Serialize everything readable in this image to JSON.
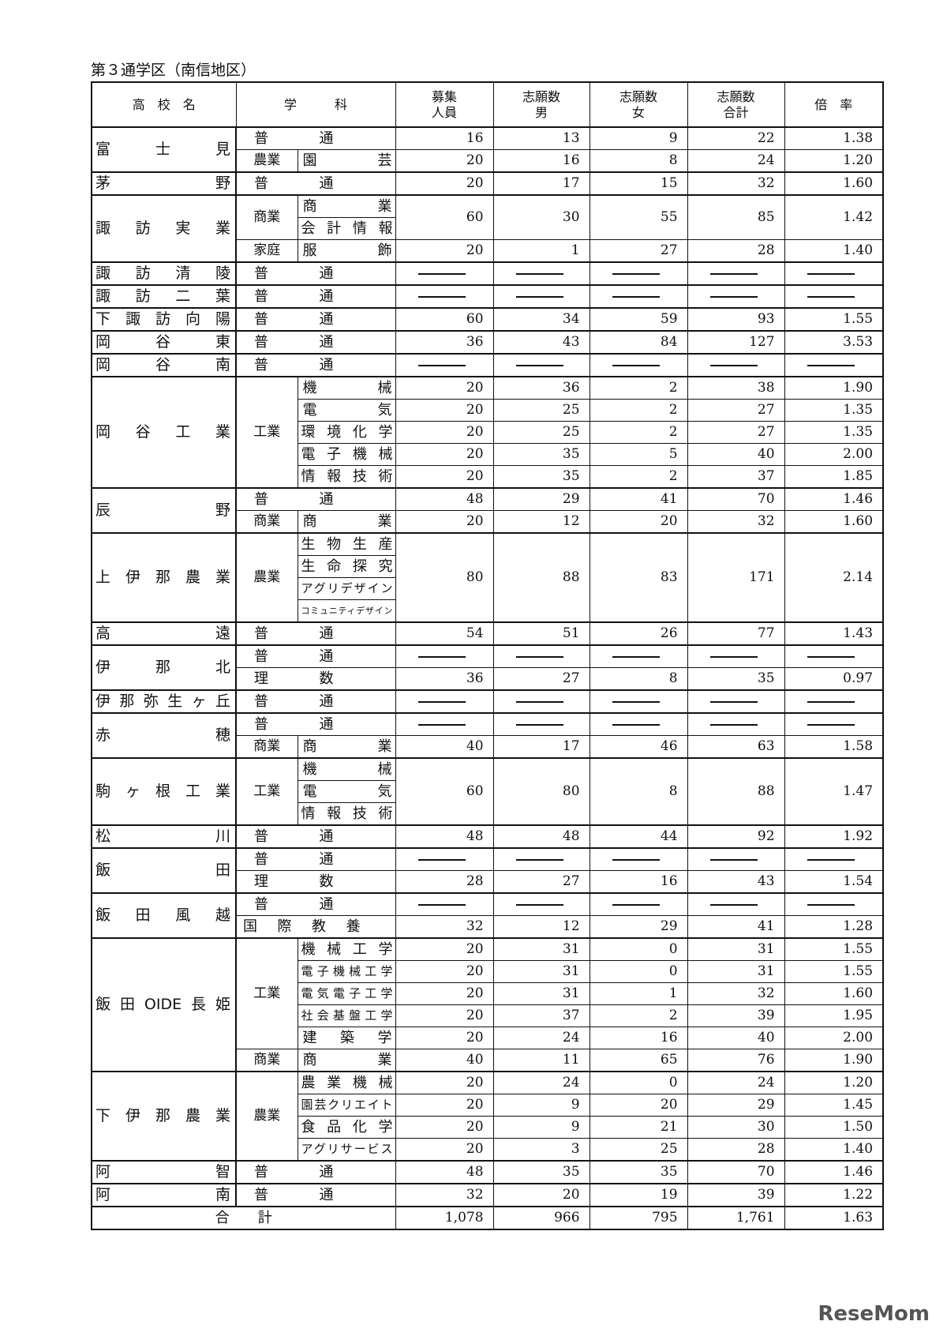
{
  "title": "第３通学区（南信地区）",
  "header": [
    [
      "高　校　名"
    ],
    [
      "学　　　科"
    ],
    [
      "募集",
      "人員"
    ],
    [
      "志願数",
      "男"
    ],
    [
      "志願数",
      "女"
    ],
    [
      "志願数",
      "合計"
    ],
    [
      "倍　率"
    ]
  ],
  "schools": [
    {
      "name": "富士見",
      "depts": [
        {
          "name": "普通",
          "values": [
            "16",
            "13",
            "9",
            "22",
            "1.38"
          ]
        },
        {
          "field": "農業",
          "courses": [
            {
              "names": [
                "園芸"
              ],
              "values": [
                "20",
                "16",
                "8",
                "24",
                "1.20"
              ]
            }
          ]
        }
      ]
    },
    {
      "name": "茅野",
      "depts": [
        {
          "name": "普通",
          "values": [
            "20",
            "17",
            "15",
            "32",
            "1.60"
          ]
        }
      ]
    },
    {
      "name": "諏訪実業",
      "depts": [
        {
          "field": "商業",
          "courses": [
            {
              "names": [
                "商業",
                "会計情報"
              ],
              "values": [
                "60",
                "30",
                "55",
                "85",
                "1.42"
              ]
            }
          ]
        },
        {
          "field": "家庭",
          "courses": [
            {
              "names": [
                "服飾"
              ],
              "values": [
                "20",
                "1",
                "27",
                "28",
                "1.40"
              ]
            }
          ]
        }
      ]
    },
    {
      "name": "諏訪清陵",
      "depts": [
        {
          "name": "普通",
          "values": null
        }
      ]
    },
    {
      "name": "諏訪二葉",
      "depts": [
        {
          "name": "普通",
          "values": null
        }
      ]
    },
    {
      "name": "下諏訪向陽",
      "depts": [
        {
          "name": "普通",
          "values": [
            "60",
            "34",
            "59",
            "93",
            "1.55"
          ]
        }
      ]
    },
    {
      "name": "岡谷東",
      "depts": [
        {
          "name": "普通",
          "values": [
            "36",
            "43",
            "84",
            "127",
            "3.53"
          ]
        }
      ]
    },
    {
      "name": "岡谷南",
      "depts": [
        {
          "name": "普通",
          "values": null
        }
      ]
    },
    {
      "name": "岡谷工業",
      "depts": [
        {
          "field": "工業",
          "courses": [
            {
              "names": [
                "機械"
              ],
              "values": [
                "20",
                "36",
                "2",
                "38",
                "1.90"
              ]
            },
            {
              "names": [
                "電気"
              ],
              "values": [
                "20",
                "25",
                "2",
                "27",
                "1.35"
              ]
            },
            {
              "names": [
                "環境化学"
              ],
              "values": [
                "20",
                "25",
                "2",
                "27",
                "1.35"
              ]
            },
            {
              "names": [
                "電子機械"
              ],
              "values": [
                "20",
                "35",
                "5",
                "40",
                "2.00"
              ]
            },
            {
              "names": [
                "情報技術"
              ],
              "values": [
                "20",
                "35",
                "2",
                "37",
                "1.85"
              ]
            }
          ]
        }
      ]
    },
    {
      "name": "辰野",
      "depts": [
        {
          "name": "普通",
          "values": [
            "48",
            "29",
            "41",
            "70",
            "1.46"
          ]
        },
        {
          "field": "商業",
          "courses": [
            {
              "names": [
                "商業"
              ],
              "values": [
                "20",
                "12",
                "20",
                "32",
                "1.60"
              ]
            }
          ]
        }
      ]
    },
    {
      "name": "上伊那農業",
      "depts": [
        {
          "field": "農業",
          "courses": [
            {
              "names": [
                "生物生産",
                "生命探究",
                "アグリデザイン",
                "コミュニティデザイン"
              ],
              "values": [
                "80",
                "88",
                "83",
                "171",
                "2.14"
              ]
            }
          ]
        }
      ]
    },
    {
      "name": "高遠",
      "depts": [
        {
          "name": "普通",
          "values": [
            "54",
            "51",
            "26",
            "77",
            "1.43"
          ]
        }
      ]
    },
    {
      "name": "伊那北",
      "depts": [
        {
          "name": "普通",
          "values": null
        },
        {
          "name": "理数",
          "values": [
            "36",
            "27",
            "8",
            "35",
            "0.97"
          ]
        }
      ]
    },
    {
      "name": "伊那弥生ヶ丘",
      "depts": [
        {
          "name": "普通",
          "values": null
        }
      ]
    },
    {
      "name": "赤穂",
      "depts": [
        {
          "name": "普通",
          "values": null
        },
        {
          "field": "商業",
          "courses": [
            {
              "names": [
                "商業"
              ],
              "values": [
                "40",
                "17",
                "46",
                "63",
                "1.58"
              ]
            }
          ]
        }
      ]
    },
    {
      "name": "駒ヶ根工業",
      "depts": [
        {
          "field": "工業",
          "courses": [
            {
              "names": [
                "機械",
                "電気",
                "情報技術"
              ],
              "values": [
                "60",
                "80",
                "8",
                "88",
                "1.47"
              ]
            }
          ]
        }
      ]
    },
    {
      "name": "松川",
      "depts": [
        {
          "name": "普通",
          "values": [
            "48",
            "48",
            "44",
            "92",
            "1.92"
          ]
        }
      ]
    },
    {
      "name": "飯田",
      "depts": [
        {
          "name": "普通",
          "values": null
        },
        {
          "name": "理数",
          "values": [
            "28",
            "27",
            "16",
            "43",
            "1.54"
          ]
        }
      ]
    },
    {
      "name": "飯田風越",
      "depts": [
        {
          "name": "普通",
          "values": null
        },
        {
          "name": "国際教養",
          "values": [
            "32",
            "12",
            "29",
            "41",
            "1.28"
          ]
        }
      ]
    },
    {
      "name": "飯田OIDE長姫",
      "depts": [
        {
          "field": "工業",
          "courses": [
            {
              "names": [
                "機械工学"
              ],
              "values": [
                "20",
                "31",
                "0",
                "31",
                "1.55"
              ]
            },
            {
              "names": [
                "電子機械工学"
              ],
              "values": [
                "20",
                "31",
                "0",
                "31",
                "1.55"
              ]
            },
            {
              "names": [
                "電気電子工学"
              ],
              "values": [
                "20",
                "31",
                "1",
                "32",
                "1.60"
              ]
            },
            {
              "names": [
                "社会基盤工学"
              ],
              "values": [
                "20",
                "37",
                "2",
                "39",
                "1.95"
              ]
            },
            {
              "names": [
                "建築学"
              ],
              "values": [
                "20",
                "24",
                "16",
                "40",
                "2.00"
              ]
            }
          ]
        },
        {
          "field": "商業",
          "courses": [
            {
              "names": [
                "商業"
              ],
              "values": [
                "40",
                "11",
                "65",
                "76",
                "1.90"
              ]
            }
          ]
        }
      ]
    },
    {
      "name": "下伊那農業",
      "depts": [
        {
          "field": "農業",
          "courses": [
            {
              "names": [
                "農業機械"
              ],
              "values": [
                "20",
                "24",
                "0",
                "24",
                "1.20"
              ]
            },
            {
              "names": [
                "園芸クリエイト"
              ],
              "values": [
                "20",
                "9",
                "20",
                "29",
                "1.45"
              ]
            },
            {
              "names": [
                "食品化学"
              ],
              "values": [
                "20",
                "9",
                "21",
                "30",
                "1.50"
              ]
            },
            {
              "names": [
                "アグリサービス"
              ],
              "values": [
                "20",
                "3",
                "25",
                "28",
                "1.40"
              ]
            }
          ]
        }
      ]
    },
    {
      "name": "阿智",
      "depts": [
        {
          "name": "普通",
          "values": [
            "48",
            "35",
            "35",
            "70",
            "1.46"
          ]
        }
      ]
    },
    {
      "name": "阿南",
      "depts": [
        {
          "name": "普通",
          "values": [
            "32",
            "20",
            "19",
            "39",
            "1.22"
          ]
        }
      ]
    }
  ],
  "total": {
    "label": "合　　計",
    "values": [
      "1,078",
      "966",
      "795",
      "1,761",
      "1.63"
    ]
  },
  "watermark": "ReseMom"
}
